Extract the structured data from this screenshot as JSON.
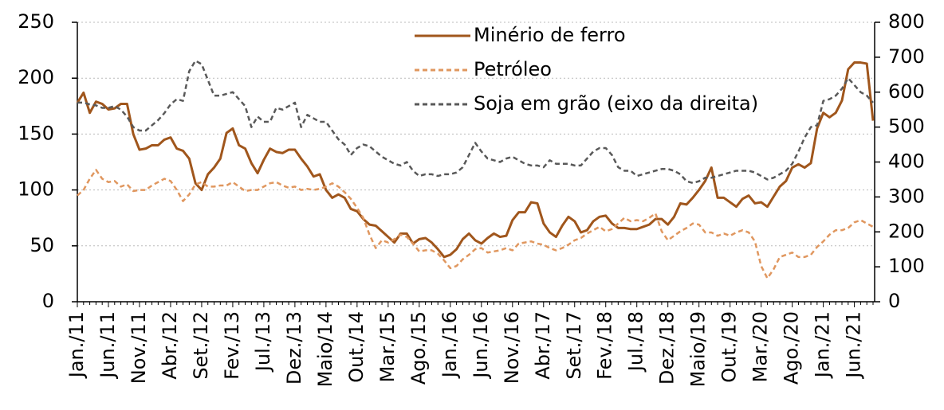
{
  "chart_data": {
    "type": "line",
    "categories": [
      "Jan./11",
      null,
      null,
      null,
      null,
      "Jun./11",
      null,
      null,
      null,
      null,
      "Nov./11",
      null,
      null,
      null,
      null,
      "Abr./12",
      null,
      null,
      null,
      null,
      "Set./12",
      null,
      null,
      null,
      null,
      "Fev./13",
      null,
      null,
      null,
      null,
      "Jul./13",
      null,
      null,
      null,
      null,
      "Dez./13",
      null,
      null,
      null,
      null,
      "Maio/14",
      null,
      null,
      null,
      null,
      "Out./14",
      null,
      null,
      null,
      null,
      "Mar./15",
      null,
      null,
      null,
      null,
      "Ago./15",
      null,
      null,
      null,
      null,
      "Jan./16",
      null,
      null,
      null,
      null,
      "Jun./16",
      null,
      null,
      null,
      null,
      "Nov./16",
      null,
      null,
      null,
      null,
      "Abr./17",
      null,
      null,
      null,
      null,
      "Set./17",
      null,
      null,
      null,
      null,
      "Fev./18",
      null,
      null,
      null,
      null,
      "Jul./18",
      null,
      null,
      null,
      null,
      "Dez./18",
      null,
      null,
      null,
      null,
      "Maio/19",
      null,
      null,
      null,
      null,
      "Out./19",
      null,
      null,
      null,
      null,
      "Mar./20",
      null,
      null,
      null,
      null,
      "Ago./20",
      null,
      null,
      null,
      null,
      "Jan./21",
      null,
      null,
      null,
      null,
      "Jun./21",
      null,
      null,
      null
    ],
    "series": [
      {
        "name": "Minério de ferro",
        "color": "#a0561c",
        "line_style": "solid",
        "axis": "y",
        "values": [
          178,
          187,
          169,
          179,
          177,
          172,
          173,
          177,
          177,
          150,
          136,
          137,
          140,
          140,
          145,
          147,
          137,
          135,
          128,
          106,
          100,
          114,
          120,
          128,
          151,
          155,
          140,
          137,
          124,
          115,
          127,
          137,
          134,
          133,
          136,
          136,
          128,
          121,
          112,
          114,
          100,
          93,
          96,
          93,
          83,
          81,
          74,
          69,
          68,
          63,
          58,
          53,
          61,
          61,
          52,
          56,
          57,
          53,
          47,
          40,
          42,
          47,
          56,
          61,
          55,
          52,
          57,
          61,
          58,
          59,
          73,
          80,
          80,
          89,
          88,
          70,
          62,
          58,
          68,
          76,
          72,
          62,
          64,
          72,
          76,
          77,
          70,
          66,
          66,
          65,
          65,
          67,
          69,
          74,
          74,
          69,
          76,
          88,
          87,
          93,
          100,
          108,
          120,
          93,
          93,
          89,
          85,
          92,
          95,
          88,
          89,
          85,
          94,
          103,
          108,
          120,
          123,
          120,
          124,
          155,
          169,
          165,
          169,
          180,
          208,
          214,
          214,
          213,
          162
        ]
      },
      {
        "name": "Petróleo",
        "color": "#e0975f",
        "line_style": "dashed",
        "axis": "y",
        "values": [
          95,
          100,
          110,
          118,
          110,
          107,
          108,
          103,
          105,
          99,
          100,
          100,
          104,
          107,
          110,
          108,
          100,
          90,
          96,
          105,
          107,
          103,
          103,
          104,
          104,
          107,
          103,
          99,
          100,
          100,
          103,
          106,
          107,
          104,
          102,
          103,
          100,
          101,
          100,
          101,
          103,
          106,
          103,
          98,
          92,
          84,
          75,
          60,
          48,
          55,
          53,
          56,
          60,
          58,
          52,
          45,
          46,
          46,
          43,
          37,
          30,
          32,
          38,
          42,
          47,
          48,
          44,
          45,
          46,
          48,
          46,
          52,
          53,
          54,
          52,
          51,
          48,
          46,
          48,
          51,
          55,
          57,
          61,
          64,
          67,
          63,
          65,
          70,
          75,
          72,
          73,
          72,
          75,
          79,
          63,
          55,
          59,
          63,
          66,
          70,
          69,
          62,
          62,
          59,
          61,
          59,
          62,
          64,
          62,
          54,
          32,
          21,
          29,
          40,
          42,
          44,
          40,
          40,
          42,
          49,
          54,
          60,
          64,
          64,
          66,
          71,
          73,
          70,
          67
        ]
      },
      {
        "name": "Soja em grão (eixo da direita)",
        "color": "#595959",
        "line_style": "dashed",
        "axis": "y2",
        "values": [
          570,
          570,
          565,
          562,
          555,
          555,
          560,
          550,
          530,
          500,
          490,
          490,
          505,
          520,
          540,
          565,
          580,
          575,
          660,
          690,
          680,
          635,
          590,
          590,
          595,
          600,
          580,
          560,
          500,
          530,
          515,
          515,
          555,
          550,
          560,
          570,
          500,
          535,
          525,
          515,
          515,
          490,
          465,
          450,
          420,
          440,
          450,
          445,
          430,
          415,
          405,
          395,
          390,
          400,
          375,
          360,
          365,
          365,
          360,
          365,
          365,
          370,
          385,
          420,
          455,
          430,
          410,
          405,
          400,
          410,
          415,
          405,
          395,
          390,
          390,
          385,
          405,
          395,
          395,
          395,
          390,
          390,
          410,
          430,
          440,
          440,
          420,
          385,
          375,
          375,
          360,
          365,
          370,
          375,
          380,
          380,
          375,
          365,
          345,
          340,
          345,
          355,
          355,
          360,
          365,
          370,
          375,
          375,
          375,
          370,
          360,
          350,
          355,
          365,
          375,
          395,
          430,
          470,
          500,
          505,
          575,
          580,
          590,
          610,
          640,
          620,
          600,
          590,
          570
        ]
      }
    ],
    "ylim": [
      0,
      250
    ],
    "yticks": [
      0,
      50,
      100,
      150,
      200,
      250
    ],
    "y2lim": [
      0,
      800
    ],
    "y2ticks": [
      0,
      100,
      200,
      300,
      400,
      500,
      600,
      700,
      800
    ],
    "grid": true,
    "legend": "top"
  }
}
